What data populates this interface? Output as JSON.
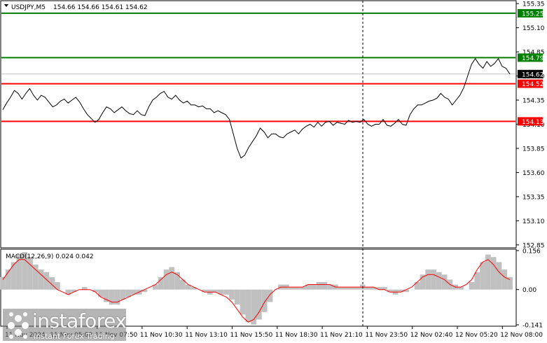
{
  "chart_data": [
    {
      "type": "line",
      "header": {
        "symbol": "USDJPY,M5",
        "ohlc": "154.66 154.66 154.61 154.62"
      },
      "y_ticks": [
        "155.35",
        "155.10",
        "154.85",
        "154.60",
        "154.35",
        "154.10",
        "153.85",
        "153.60",
        "153.35",
        "153.10",
        "152.85"
      ],
      "ylim": [
        152.82,
        155.38
      ],
      "levels": [
        {
          "value": 155.25,
          "label": "155.25",
          "color": "#008000"
        },
        {
          "value": 154.79,
          "label": "154.79",
          "color": "#008000"
        },
        {
          "value": 154.52,
          "label": "154.52",
          "color": "#ff0000"
        },
        {
          "value": 154.13,
          "label": "154.13",
          "color": "#ff0000"
        }
      ],
      "current_price": {
        "value": 154.62,
        "label": "154.62"
      },
      "series": [
        {
          "values": [
            154.25,
            154.32,
            154.38,
            154.45,
            154.42,
            154.36,
            154.42,
            154.47,
            154.4,
            154.35,
            154.4,
            154.38,
            154.33,
            154.28,
            154.3,
            154.34,
            154.36,
            154.32,
            154.35,
            154.38,
            154.33,
            154.26,
            154.2,
            154.16,
            154.12,
            154.15,
            154.22,
            154.28,
            154.26,
            154.22,
            154.25,
            154.28,
            154.24,
            154.21,
            154.2,
            154.24,
            154.2,
            154.19,
            154.28,
            154.35,
            154.38,
            154.42,
            154.44,
            154.38,
            154.36,
            154.4,
            154.35,
            154.32,
            154.34,
            154.3,
            154.3,
            154.28,
            154.29,
            154.26,
            154.26,
            154.22,
            154.24,
            154.22,
            154.2,
            154.15,
            154.0,
            153.85,
            153.75,
            153.78,
            153.86,
            153.92,
            153.98,
            154.06,
            154.02,
            153.96,
            154.0,
            154.0,
            153.97,
            153.96,
            154.0,
            154.02,
            154.04,
            154.0,
            154.05,
            154.08,
            154.1,
            154.07,
            154.12,
            154.08,
            154.12,
            154.13,
            154.09,
            154.12,
            154.11,
            154.1,
            154.14,
            154.12,
            154.13,
            154.12,
            154.15,
            154.1,
            154.08,
            154.1,
            154.1,
            154.15,
            154.09,
            154.08,
            154.11,
            154.15,
            154.1,
            154.09,
            154.2,
            154.26,
            154.3,
            154.3,
            154.32,
            154.34,
            154.35,
            154.37,
            154.42,
            154.38,
            154.36,
            154.3,
            154.35,
            154.4,
            154.48,
            154.6,
            154.72,
            154.78,
            154.72,
            154.68,
            154.75,
            154.7,
            154.73,
            154.78,
            154.7,
            154.68,
            154.62
          ]
        }
      ],
      "x_ticks": [
        "11 Nov 2024",
        "11 Nov 05:00",
        "11 Nov 07:50",
        "11 Nov 10:30",
        "11 Nov 13:10",
        "11 Nov 15:50",
        "11 Nov 18:30",
        "11 Nov 21:10",
        "11 Nov 23:50",
        "12 Nov 02:40",
        "12 Nov 05:20",
        "12 Nov 08:00"
      ],
      "x_ticks_display": [
        "11 Nov 2024",
        "11 Nov 05:00",
        "11 Nov 07:50",
        "11 Nov 10:30",
        "11 Nov 13:10",
        "11 Nov 15:50",
        "11 Nov 18:30",
        "11 Nov 21:10",
        "11 Nov 23:50",
        "12 Nov 02:40",
        "12 Nov 05:20",
        "12 Nov 08:00"
      ]
    },
    {
      "type": "bar",
      "title": "MACD(12,26,9) 0.024 0.042",
      "y_ticks": [
        "0.156",
        "0.00",
        "-0.141"
      ],
      "ylim": [
        -0.141,
        0.156
      ],
      "histogram": [
        0.05,
        0.08,
        0.11,
        0.14,
        0.15,
        0.13,
        0.1,
        0.08,
        0.07,
        0.05,
        0.03,
        0.0,
        -0.02,
        -0.01,
        0.0,
        0.01,
        0.0,
        -0.01,
        -0.03,
        -0.05,
        -0.06,
        -0.06,
        -0.04,
        -0.03,
        -0.02,
        -0.02,
        -0.01,
        0.0,
        0.02,
        0.05,
        0.08,
        0.09,
        0.07,
        0.04,
        0.02,
        0.01,
        0.0,
        -0.01,
        -0.02,
        -0.01,
        -0.02,
        -0.02,
        -0.04,
        -0.06,
        -0.1,
        -0.13,
        -0.14,
        -0.12,
        -0.09,
        -0.05,
        0.0,
        0.02,
        0.02,
        0.01,
        0.01,
        0.01,
        0.02,
        0.02,
        0.03,
        0.03,
        0.02,
        0.02,
        0.01,
        0.01,
        0.01,
        0.01,
        0.02,
        0.01,
        0.01,
        0.01,
        0.01,
        -0.01,
        -0.02,
        -0.01,
        -0.01,
        0.0,
        0.03,
        0.06,
        0.08,
        0.08,
        0.07,
        0.06,
        0.04,
        0.02,
        0.01,
        0.0,
        0.03,
        0.07,
        0.11,
        0.14,
        0.13,
        0.11,
        0.08,
        0.05
      ],
      "signal": [
        0.04,
        0.07,
        0.1,
        0.12,
        0.12,
        0.1,
        0.08,
        0.06,
        0.04,
        0.02,
        0.0,
        -0.01,
        -0.02,
        -0.01,
        0.0,
        0.0,
        0.0,
        -0.01,
        -0.03,
        -0.04,
        -0.05,
        -0.05,
        -0.04,
        -0.03,
        -0.02,
        -0.01,
        0.0,
        0.01,
        0.02,
        0.04,
        0.06,
        0.07,
        0.06,
        0.04,
        0.02,
        0.01,
        0.0,
        -0.01,
        -0.01,
        -0.01,
        -0.02,
        -0.03,
        -0.05,
        -0.08,
        -0.11,
        -0.13,
        -0.12,
        -0.09,
        -0.05,
        -0.02,
        0.0,
        0.01,
        0.01,
        0.01,
        0.01,
        0.01,
        0.02,
        0.02,
        0.02,
        0.02,
        0.02,
        0.01,
        0.01,
        0.01,
        0.01,
        0.01,
        0.01,
        0.01,
        0.01,
        0.0,
        0.0,
        -0.01,
        -0.01,
        -0.01,
        0.0,
        0.01,
        0.03,
        0.05,
        0.06,
        0.06,
        0.05,
        0.04,
        0.02,
        0.01,
        0.01,
        0.02,
        0.04,
        0.08,
        0.11,
        0.12,
        0.1,
        0.07,
        0.05,
        0.04
      ]
    }
  ],
  "watermark": {
    "brand": "instaforex",
    "tagline": "Instant Forex Trading"
  }
}
